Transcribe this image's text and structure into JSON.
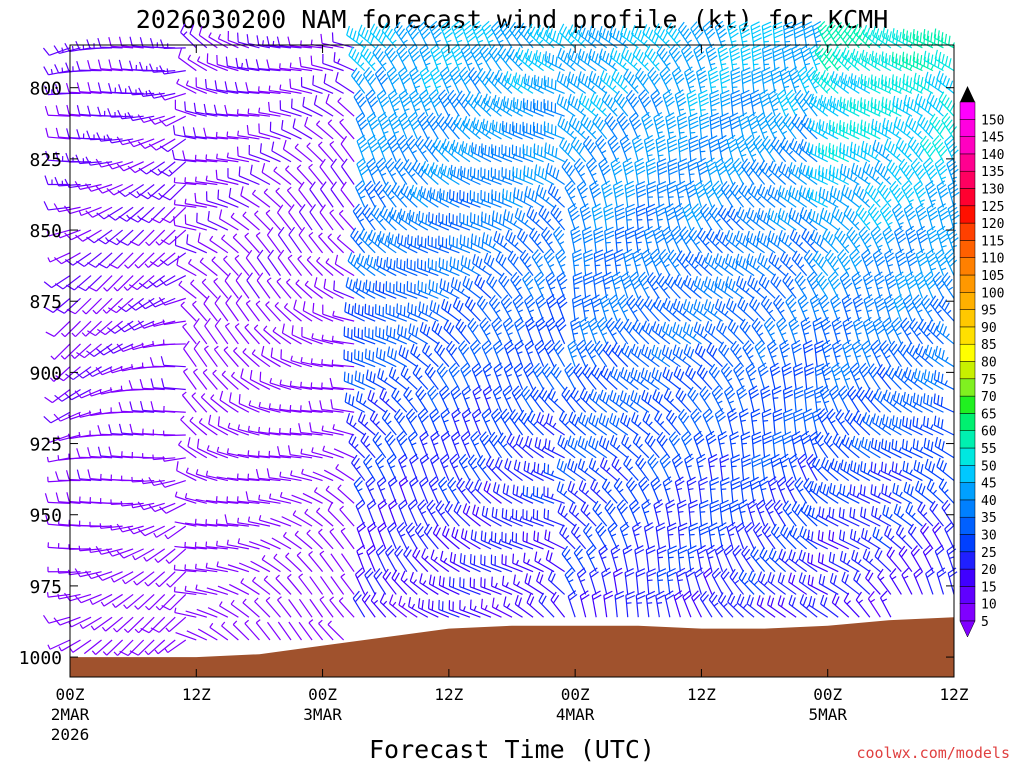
{
  "chart_data": {
    "type": "wind-barb-profile",
    "title": "2026030200 NAM forecast wind profile (kt) for KCMH",
    "xlabel": "Forecast Time (UTC)",
    "ylabel": "",
    "units": "kt",
    "pressure_range_hpa": [
      1007,
      785
    ],
    "pressure_ticks": [
      800,
      825,
      850,
      875,
      900,
      925,
      950,
      975,
      1000
    ],
    "time_range_hours": [
      0,
      84
    ],
    "time_ticks": [
      {
        "hour": 0,
        "label": "00Z",
        "date": "2MAR",
        "year": "2026"
      },
      {
        "hour": 12,
        "label": "12Z",
        "date": "",
        "year": ""
      },
      {
        "hour": 24,
        "label": "00Z",
        "date": "3MAR",
        "year": ""
      },
      {
        "hour": 36,
        "label": "12Z",
        "date": "",
        "year": ""
      },
      {
        "hour": 48,
        "label": "00Z",
        "date": "4MAR",
        "year": ""
      },
      {
        "hour": 60,
        "label": "12Z",
        "date": "",
        "year": ""
      },
      {
        "hour": 72,
        "label": "00Z",
        "date": "5MAR",
        "year": ""
      },
      {
        "hour": 84,
        "label": "12Z",
        "date": "",
        "year": ""
      }
    ],
    "colorbar": {
      "levels": [
        5,
        10,
        15,
        20,
        25,
        30,
        35,
        40,
        45,
        50,
        55,
        60,
        65,
        70,
        75,
        80,
        85,
        90,
        95,
        100,
        105,
        110,
        115,
        120,
        125,
        130,
        135,
        140,
        145,
        150
      ],
      "colors": [
        "#8000ff",
        "#6000ff",
        "#4000ff",
        "#2020ff",
        "#0040ff",
        "#0060ff",
        "#0080ff",
        "#00a0ff",
        "#00c8ff",
        "#00e8e0",
        "#00f0b0",
        "#00f070",
        "#20f020",
        "#80f020",
        "#c8f000",
        "#ffff00",
        "#ffe000",
        "#ffc800",
        "#ffb000",
        "#ff9800",
        "#ff8000",
        "#ff6000",
        "#ff4000",
        "#ff1000",
        "#ff0030",
        "#ff0060",
        "#ff0090",
        "#ff00c0",
        "#ff00e0",
        "#ff00ff"
      ],
      "tick_labels": [
        "5",
        "10",
        "15",
        "20",
        "25",
        "30",
        "35",
        "40",
        "45",
        "50",
        "55",
        "60",
        "65",
        "70",
        "75",
        "80",
        "85",
        "90",
        "95",
        "100",
        "105",
        "110",
        "115",
        "120",
        "125",
        "130",
        "135",
        "140",
        "145",
        "150"
      ]
    },
    "terrain": {
      "color": "#a0522d",
      "surface_pressure": [
        {
          "hour": 0,
          "hpa": 1000
        },
        {
          "hour": 12,
          "hpa": 1000
        },
        {
          "hour": 18,
          "hpa": 999
        },
        {
          "hour": 24,
          "hpa": 996
        },
        {
          "hour": 30,
          "hpa": 993
        },
        {
          "hour": 36,
          "hpa": 990
        },
        {
          "hour": 42,
          "hpa": 989
        },
        {
          "hour": 48,
          "hpa": 989
        },
        {
          "hour": 54,
          "hpa": 989
        },
        {
          "hour": 60,
          "hpa": 990
        },
        {
          "hour": 66,
          "hpa": 990
        },
        {
          "hour": 72,
          "hpa": 989
        },
        {
          "hour": 78,
          "hpa": 987
        },
        {
          "hour": 84,
          "hpa": 986
        }
      ]
    },
    "barbs_field": {
      "time_step_hours": 1,
      "pressure_levels_hpa": [
        786,
        794,
        802,
        810,
        818,
        826,
        834,
        842,
        850,
        858,
        866,
        874,
        882,
        890,
        898,
        906,
        914,
        922,
        930,
        938,
        946,
        954,
        962,
        970,
        978,
        986,
        994,
        1002
      ],
      "phases": [
        {
          "hours": [
            0,
            12
          ],
          "speed_kt_low": 5,
          "speed_kt_high": 12,
          "direction_deg": 250
        },
        {
          "hours": [
            12,
            28
          ],
          "speed_kt_low": 3,
          "speed_kt_high": 10,
          "direction_deg": 300
        },
        {
          "hours": [
            28,
            48
          ],
          "speed_kt_low": 15,
          "speed_kt_high": 45,
          "direction_deg": 315
        },
        {
          "hours": [
            48,
            72
          ],
          "speed_kt_low": 20,
          "speed_kt_high": 45,
          "direction_deg": 330
        },
        {
          "hours": [
            72,
            84
          ],
          "speed_kt_low": 15,
          "speed_kt_high": 55,
          "direction_deg": 320
        }
      ]
    },
    "credit": "coolwx.com/models"
  }
}
